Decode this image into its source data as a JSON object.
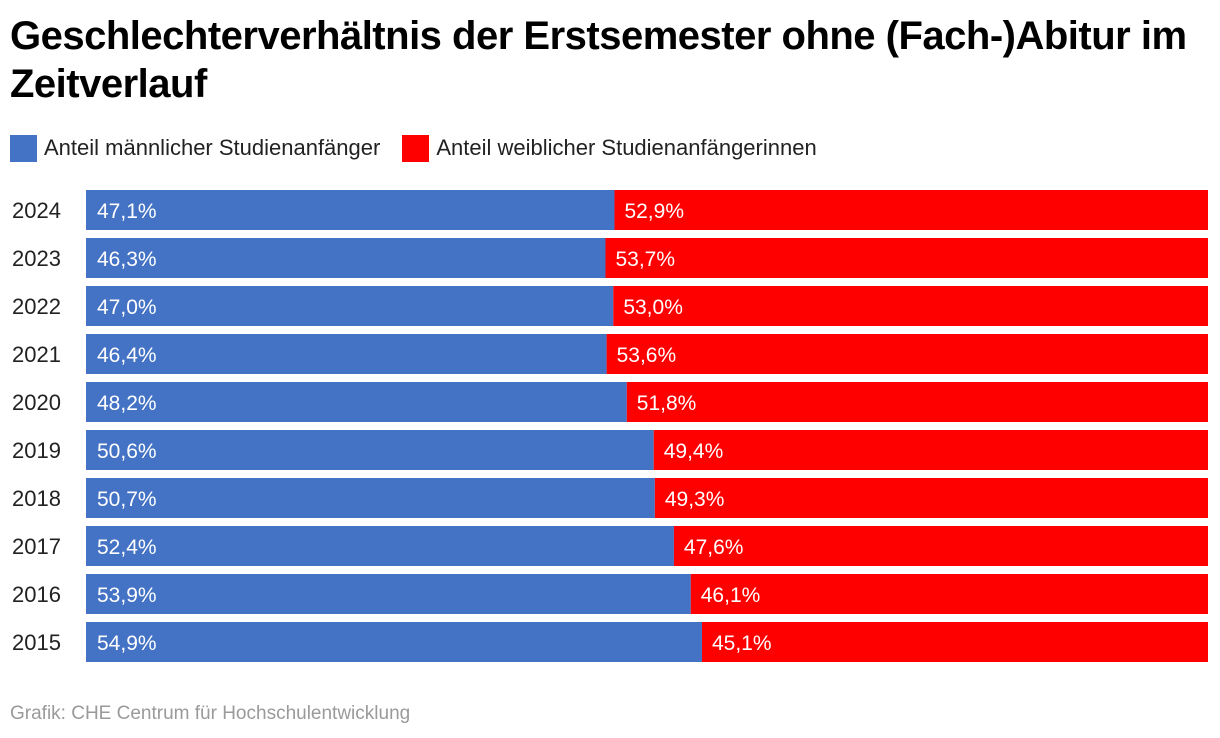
{
  "title": "Geschlechterverhältnis der Erstsemester ohne (Fach-)Abitur im Zeitverlauf",
  "source": "Grafik: CHE Centrum für Hochschulentwicklung",
  "chart_data": {
    "type": "bar",
    "orientation": "horizontal",
    "stacked": true,
    "normalized_100": true,
    "legend_position": "top-left",
    "grid": false,
    "xlim": [
      0,
      100
    ],
    "categories": [
      "2024",
      "2023",
      "2022",
      "2021",
      "2020",
      "2019",
      "2018",
      "2017",
      "2016",
      "2015"
    ],
    "series": [
      {
        "name": "Anteil männlicher Studienanfänger",
        "color": "#4472c4",
        "values": [
          47.1,
          46.3,
          47.0,
          46.4,
          48.2,
          50.6,
          50.7,
          52.4,
          53.9,
          54.9
        ],
        "labels": [
          "47,1%",
          "46,3%",
          "47,0%",
          "46,4%",
          "48,2%",
          "50,6%",
          "50,7%",
          "52,4%",
          "53,9%",
          "54,9%"
        ]
      },
      {
        "name": "Anteil weiblicher Studienanfängerinnen",
        "color": "#ff0000",
        "values": [
          52.9,
          53.7,
          53.0,
          53.6,
          51.8,
          49.4,
          49.3,
          47.6,
          46.1,
          45.1
        ],
        "labels": [
          "52,9%",
          "53,7%",
          "53,0%",
          "53,6%",
          "51,8%",
          "49,4%",
          "49,3%",
          "47,6%",
          "46,1%",
          "45,1%"
        ]
      }
    ]
  }
}
